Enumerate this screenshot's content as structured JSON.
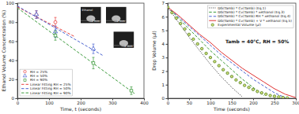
{
  "chart_data": [
    {
      "type": "scatter",
      "xlabel": "Time, t (seconds)",
      "ylabel": "Ethanol Volume Concentration (%)",
      "xlim": [
        0,
        400
      ],
      "xticks": [
        0,
        100,
        200,
        300,
        400
      ],
      "ylim": [
        0,
        100
      ],
      "yticks": [
        0,
        20,
        40,
        60,
        80,
        100
      ],
      "legend": "lower left",
      "annotations": [
        "Ethanol",
        "2 mm",
        "2 mm",
        "2 mm"
      ],
      "series": [
        {
          "name": "RH = 25%",
          "type": "scatter",
          "marker": "circle-open",
          "color": "#e8423f",
          "x": [
            60,
            120
          ],
          "values": [
            88,
            80
          ],
          "errors": [
            4,
            5
          ]
        },
        {
          "name": "RH = 50%",
          "type": "scatter",
          "marker": "triangle-open",
          "color": "#4a63d0",
          "x": [
            60,
            120,
            240
          ],
          "values": [
            88,
            70,
            52
          ],
          "errors": [
            4,
            6,
            5
          ]
        },
        {
          "name": "RH = 90%",
          "type": "scatter",
          "marker": "square-open",
          "color": "#3a9a3a",
          "x": [
            120,
            240,
            360
          ],
          "values": [
            66,
            37,
            8
          ],
          "errors": [
            5,
            6,
            4
          ]
        },
        {
          "name": "Linear Fitting RH = 25%",
          "type": "line",
          "line_style": "dashed",
          "color": "#e8423f",
          "x": [
            0,
            180
          ],
          "values": [
            96,
            65
          ]
        },
        {
          "name": "Linear Fitting RH = 50%",
          "type": "line",
          "line_style": "dashed",
          "color": "#4a63d0",
          "x": [
            0,
            270
          ],
          "values": [
            97,
            45
          ]
        },
        {
          "name": "Linear Fitting RH = 90%",
          "type": "line",
          "line_style": "dashed",
          "color": "#3a9a3a",
          "x": [
            0,
            370
          ],
          "values": [
            95,
            5
          ]
        }
      ]
    },
    {
      "type": "line",
      "xlabel": "Time (seconds)",
      "ylabel": "Drop Volume (µl)",
      "xlim": [
        0,
        300
      ],
      "xticks": [
        0,
        50,
        100,
        150,
        200,
        250,
        300
      ],
      "ylim": [
        0,
        7
      ],
      "yticks": [
        0,
        1,
        2,
        3,
        4,
        5,
        6,
        7
      ],
      "legend": "upper right",
      "annotations": [
        "Tamb = 40°C, RH = 50%"
      ],
      "series": [
        {
          "name": "DG(Tamb) * Cv(Tamb) (Eq.1)",
          "type": "line",
          "line_style": "dotted",
          "color": "#333333",
          "x": [
            0,
            25,
            50,
            75,
            100,
            125,
            150,
            175
          ],
          "values": [
            6.7,
            5.6,
            4.5,
            3.5,
            2.5,
            1.6,
            0.8,
            0.1
          ]
        },
        {
          "name": "DG(Tamb) * Cv(Tamb) * xethanol (Eq.3)",
          "type": "line",
          "line_style": "dashed",
          "color": "#3a9a3a",
          "x": [
            0,
            25,
            50,
            75,
            100,
            125,
            150,
            175,
            200,
            225
          ],
          "values": [
            6.7,
            5.9,
            5.1,
            4.3,
            3.5,
            2.8,
            2.1,
            1.4,
            0.8,
            0.2
          ]
        },
        {
          "name": "DG(Tamb) * Cv(Tamb) RH * xethanol (Eq.4)",
          "type": "line",
          "line_style": "dashed",
          "color": "#4a63d0",
          "x": [
            0,
            25,
            50,
            75,
            100,
            125,
            150,
            175,
            200,
            225,
            250,
            275
          ],
          "values": [
            6.7,
            6.0,
            5.3,
            4.6,
            3.9,
            3.2,
            2.6,
            2.0,
            1.4,
            0.9,
            0.4,
            0.05
          ]
        },
        {
          "name": "DG(Tamb) * Cv(Tamb) + V * xethanol (Eq.5)",
          "type": "line",
          "line_style": "solid",
          "color": "#e03030",
          "x": [
            0,
            25,
            50,
            75,
            100,
            125,
            150,
            175,
            200,
            225,
            250,
            275,
            300
          ],
          "values": [
            6.7,
            6.1,
            5.4,
            4.7,
            4.1,
            3.4,
            2.8,
            2.2,
            1.7,
            1.2,
            0.7,
            0.3,
            0.05
          ]
        },
        {
          "name": "Experimental Volume (µl)",
          "type": "scatter",
          "marker": "circle-filled",
          "color": "#4f7f1f",
          "x": [
            0,
            10,
            20,
            30,
            40,
            50,
            60,
            70,
            80,
            90,
            100,
            110,
            120,
            130,
            140,
            150,
            160,
            170,
            180,
            190,
            200,
            210,
            220,
            230,
            240,
            250,
            260,
            270,
            280
          ],
          "values": [
            6.7,
            6.3,
            5.9,
            5.5,
            5.1,
            4.7,
            4.35,
            4.0,
            3.65,
            3.3,
            3.0,
            2.7,
            2.4,
            2.1,
            1.85,
            1.6,
            1.35,
            1.15,
            0.95,
            0.8,
            0.65,
            0.5,
            0.4,
            0.3,
            0.2,
            0.15,
            0.1,
            0.05,
            0.02
          ]
        }
      ]
    }
  ]
}
